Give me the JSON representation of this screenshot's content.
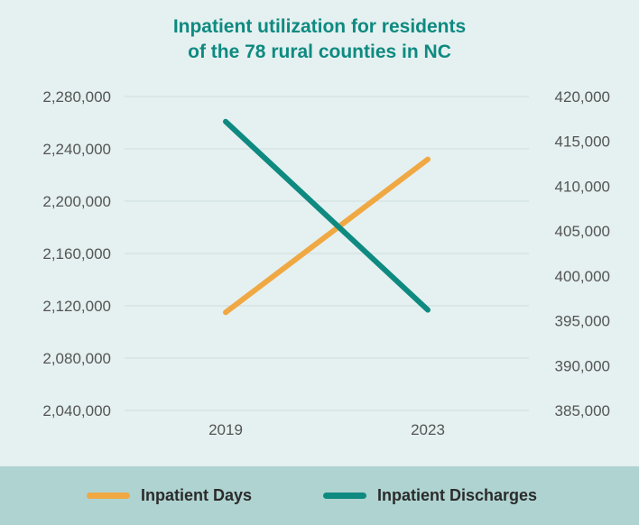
{
  "chart_data": {
    "type": "line",
    "title_lines": [
      "Inpatient utilization for residents",
      "of the 78 rural counties in NC"
    ],
    "categories": [
      "2019",
      "2023"
    ],
    "y_left": {
      "ticks": [
        "2,040,000",
        "2,080,000",
        "2,120,000",
        "2,160,000",
        "2,200,000",
        "2,240,000",
        "2,280,000"
      ],
      "min": 2040000,
      "max": 2280000
    },
    "y_right": {
      "ticks": [
        "385,000",
        "390,000",
        "395,000",
        "400,000",
        "405,000",
        "410,000",
        "415,000",
        "420,000"
      ],
      "min": 385000,
      "max": 420000
    },
    "series": [
      {
        "name": "Inpatient Days",
        "axis": "left",
        "color": "#f0a843",
        "values": [
          2115000,
          2232000
        ]
      },
      {
        "name": "Inpatient Discharges",
        "axis": "right",
        "color": "#0e8a80",
        "values": [
          417200,
          396200
        ]
      }
    ],
    "grid": true,
    "legend_position": "bottom"
  }
}
